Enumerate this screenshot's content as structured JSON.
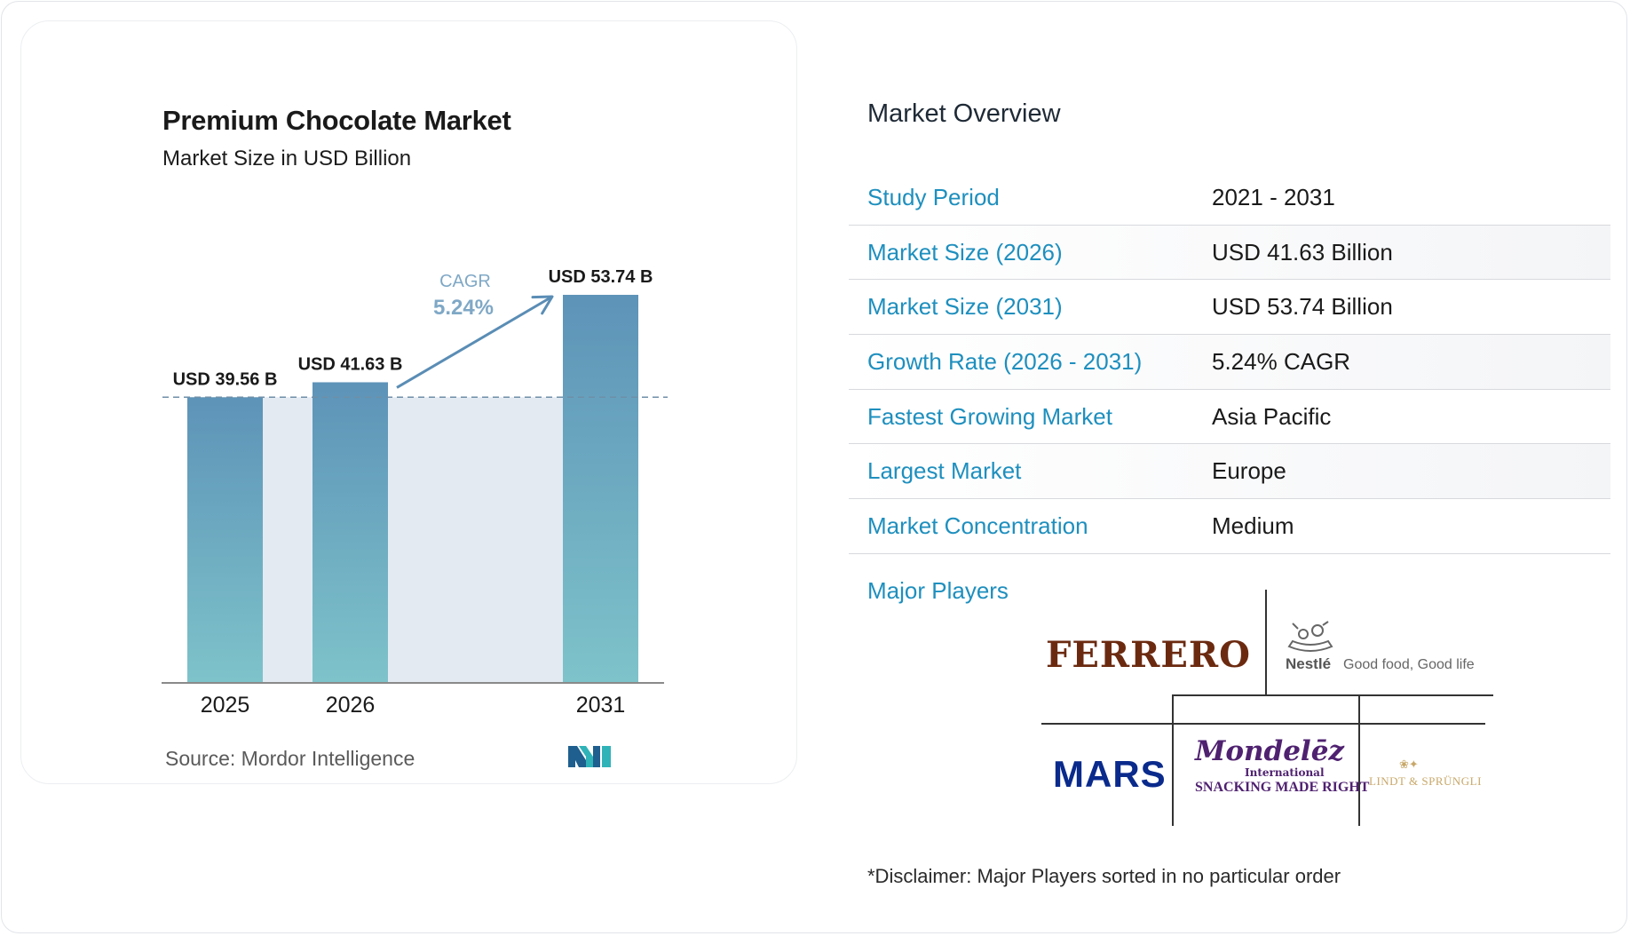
{
  "chart_title": "Premium Chocolate Market",
  "chart_subtitle": "Market Size in USD Billion",
  "chart_data": {
    "type": "bar",
    "title": "Premium Chocolate Market",
    "subtitle": "Market Size in USD Billion",
    "categories": [
      "2025",
      "2026",
      "2031"
    ],
    "values": [
      39.56,
      41.63,
      53.74
    ],
    "value_labels": [
      "USD 39.56 B",
      "USD 41.63 B",
      "USD 53.74 B"
    ],
    "xlabel": "",
    "ylabel": "",
    "ylim": [
      0,
      53.74
    ],
    "grid": false,
    "legend": "none",
    "annotation": {
      "label": "CAGR",
      "value": "5.24%"
    },
    "bar_color_top": "#5d93b8",
    "bar_color_bottom": "#7ec3ca",
    "band_color": "#e3eaf2",
    "arrow_color": "#5a8db5"
  },
  "source": "Source:  Mordor Intelligence",
  "overview": {
    "title": "Market Overview",
    "rows": [
      {
        "key": "Study Period",
        "value": "2021 - 2031"
      },
      {
        "key": "Market Size (2026)",
        "value": "USD 41.63 Billion"
      },
      {
        "key": "Market Size (2031)",
        "value": "USD 53.74 Billion"
      },
      {
        "key": "Growth Rate (2026 - 2031)",
        "value": "5.24% CAGR"
      },
      {
        "key": "Fastest Growing Market",
        "value": "Asia Pacific"
      },
      {
        "key": "Largest Market",
        "value": "Europe"
      },
      {
        "key": "Market Concentration",
        "value": "Medium"
      }
    ]
  },
  "major_players": {
    "label": "Major Players",
    "ferrero": "FERRERO",
    "nestle": "Nestlé",
    "nestle_tagline": "Good food, Good life",
    "mars": "MARS",
    "mondelez": "Mondelēz",
    "mondelez_sub": "International",
    "mondelez_tagline": "SNACKING MADE RIGHT",
    "lindt": "LINDT & SPRÜNGLI"
  },
  "disclaimer": "*Disclaimer: Major Players sorted in no particular order",
  "accent_color": "#1e8fbe"
}
